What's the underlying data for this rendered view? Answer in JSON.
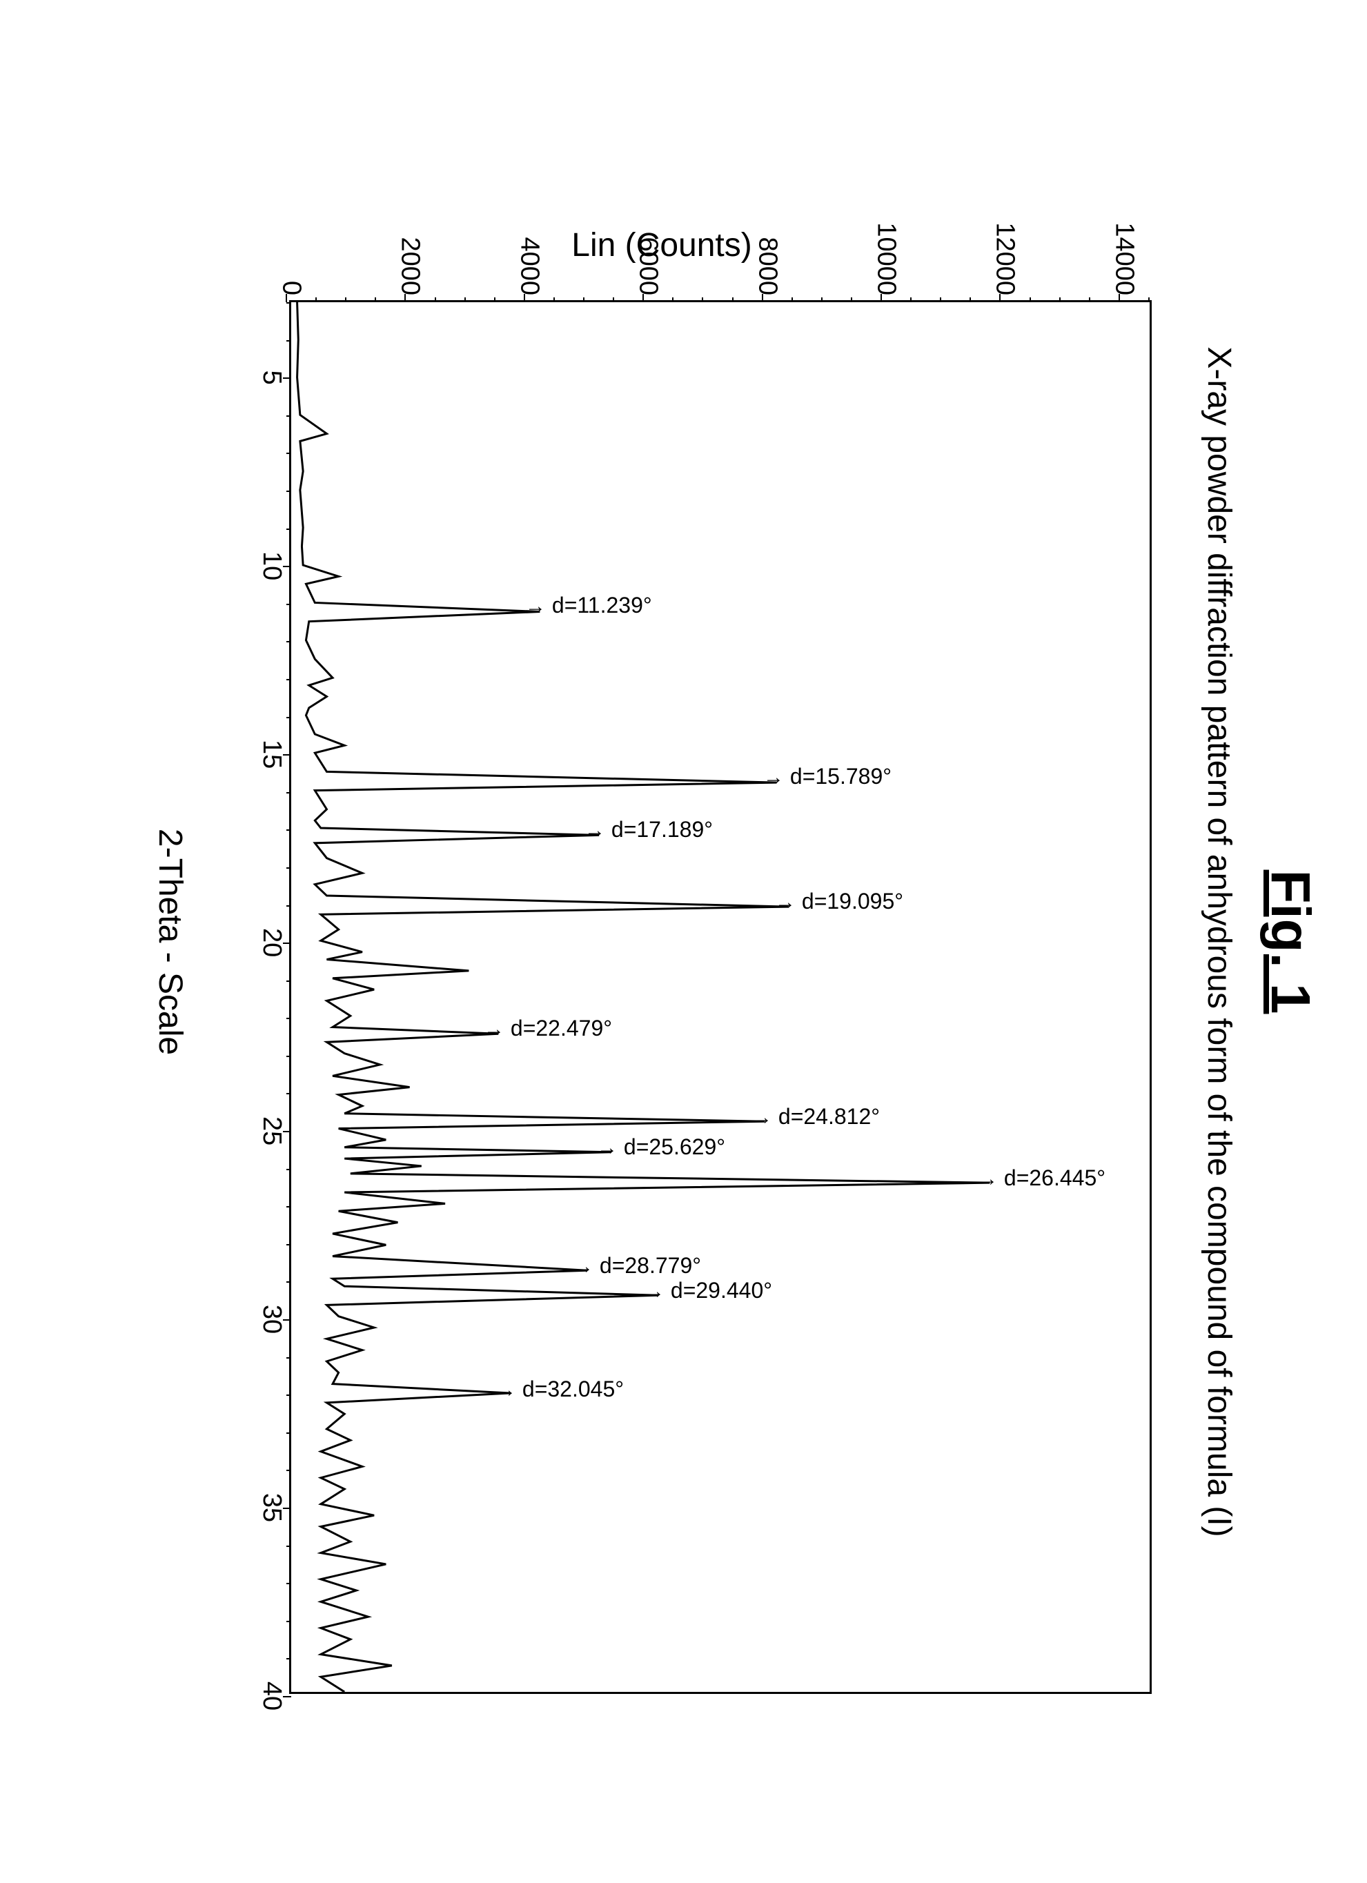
{
  "figure_title": "Fig. 1",
  "subtitle": "X-ray powder diffraction pattern of anhydrous form of the compound of formula (I)",
  "chart": {
    "type": "line",
    "ylabel": "Lin (Counts)",
    "xlabel": "2-Theta - Scale",
    "xlim": [
      3,
      40
    ],
    "ylim": [
      0,
      14500
    ],
    "ytick_step": 2000,
    "yticks": [
      0,
      2000,
      4000,
      6000,
      8000,
      10000,
      12000,
      14000
    ],
    "xticks": [
      5,
      10,
      15,
      20,
      25,
      30,
      35,
      40
    ],
    "minor_y_step": 500,
    "minor_x_step": 1,
    "line_color": "#000000",
    "line_width": 3,
    "background_color": "#ffffff",
    "border_color": "#000000",
    "border_width": 3,
    "title_fontsize": 80,
    "subtitle_fontsize": 48,
    "label_fontsize": 48,
    "tick_fontsize": 38,
    "peak_label_fontsize": 32,
    "peaks": [
      {
        "x": 11.239,
        "intensity": 4200,
        "label": "d=11.239°"
      },
      {
        "x": 15.789,
        "intensity": 8200,
        "label": "d=15.789°"
      },
      {
        "x": 17.189,
        "intensity": 5200,
        "label": "d=17.189°"
      },
      {
        "x": 19.095,
        "intensity": 8400,
        "label": "d=19.095°"
      },
      {
        "x": 22.479,
        "intensity": 3500,
        "label": "d=22.479°"
      },
      {
        "x": 24.812,
        "intensity": 8000,
        "label": "d=24.812°"
      },
      {
        "x": 25.629,
        "intensity": 5400,
        "label": "d=25.629°"
      },
      {
        "x": 26.445,
        "intensity": 11800,
        "label": "d=26.445°"
      },
      {
        "x": 28.779,
        "intensity": 5000,
        "label": "d=28.779°"
      },
      {
        "x": 29.44,
        "intensity": 6200,
        "label": "d=29.440°"
      },
      {
        "x": 32.045,
        "intensity": 3700,
        "label": "d=32.045°"
      }
    ],
    "trace": [
      {
        "x": 3,
        "y": 100
      },
      {
        "x": 4,
        "y": 120
      },
      {
        "x": 5,
        "y": 100
      },
      {
        "x": 6,
        "y": 150
      },
      {
        "x": 6.5,
        "y": 600
      },
      {
        "x": 6.7,
        "y": 150
      },
      {
        "x": 7.5,
        "y": 200
      },
      {
        "x": 8,
        "y": 150
      },
      {
        "x": 9,
        "y": 200
      },
      {
        "x": 9.5,
        "y": 180
      },
      {
        "x": 10,
        "y": 200
      },
      {
        "x": 10.3,
        "y": 800
      },
      {
        "x": 10.5,
        "y": 250
      },
      {
        "x": 11,
        "y": 400
      },
      {
        "x": 11.239,
        "y": 4200
      },
      {
        "x": 11.5,
        "y": 300
      },
      {
        "x": 12,
        "y": 250
      },
      {
        "x": 12.5,
        "y": 400
      },
      {
        "x": 13,
        "y": 700
      },
      {
        "x": 13.2,
        "y": 300
      },
      {
        "x": 13.5,
        "y": 600
      },
      {
        "x": 13.8,
        "y": 300
      },
      {
        "x": 14,
        "y": 250
      },
      {
        "x": 14.5,
        "y": 400
      },
      {
        "x": 14.8,
        "y": 900
      },
      {
        "x": 15,
        "y": 400
      },
      {
        "x": 15.5,
        "y": 600
      },
      {
        "x": 15.789,
        "y": 8200
      },
      {
        "x": 16,
        "y": 400
      },
      {
        "x": 16.5,
        "y": 600
      },
      {
        "x": 16.8,
        "y": 400
      },
      {
        "x": 17,
        "y": 500
      },
      {
        "x": 17.189,
        "y": 5200
      },
      {
        "x": 17.4,
        "y": 400
      },
      {
        "x": 17.8,
        "y": 600
      },
      {
        "x": 18.2,
        "y": 1200
      },
      {
        "x": 18.5,
        "y": 400
      },
      {
        "x": 18.8,
        "y": 600
      },
      {
        "x": 19.095,
        "y": 8400
      },
      {
        "x": 19.3,
        "y": 500
      },
      {
        "x": 19.7,
        "y": 800
      },
      {
        "x": 20,
        "y": 500
      },
      {
        "x": 20.3,
        "y": 1200
      },
      {
        "x": 20.5,
        "y": 600
      },
      {
        "x": 20.8,
        "y": 3000
      },
      {
        "x": 21,
        "y": 700
      },
      {
        "x": 21.3,
        "y": 1400
      },
      {
        "x": 21.6,
        "y": 600
      },
      {
        "x": 22,
        "y": 1000
      },
      {
        "x": 22.3,
        "y": 700
      },
      {
        "x": 22.479,
        "y": 3500
      },
      {
        "x": 22.7,
        "y": 600
      },
      {
        "x": 23,
        "y": 900
      },
      {
        "x": 23.3,
        "y": 1500
      },
      {
        "x": 23.6,
        "y": 700
      },
      {
        "x": 23.9,
        "y": 2000
      },
      {
        "x": 24.1,
        "y": 800
      },
      {
        "x": 24.4,
        "y": 1200
      },
      {
        "x": 24.6,
        "y": 900
      },
      {
        "x": 24.812,
        "y": 8000
      },
      {
        "x": 25,
        "y": 800
      },
      {
        "x": 25.3,
        "y": 1600
      },
      {
        "x": 25.5,
        "y": 900
      },
      {
        "x": 25.629,
        "y": 5400
      },
      {
        "x": 25.8,
        "y": 900
      },
      {
        "x": 26,
        "y": 2200
      },
      {
        "x": 26.2,
        "y": 1000
      },
      {
        "x": 26.445,
        "y": 11800
      },
      {
        "x": 26.7,
        "y": 900
      },
      {
        "x": 27,
        "y": 2600
      },
      {
        "x": 27.2,
        "y": 800
      },
      {
        "x": 27.5,
        "y": 1800
      },
      {
        "x": 27.8,
        "y": 700
      },
      {
        "x": 28.1,
        "y": 1600
      },
      {
        "x": 28.4,
        "y": 700
      },
      {
        "x": 28.779,
        "y": 5000
      },
      {
        "x": 29,
        "y": 700
      },
      {
        "x": 29.2,
        "y": 900
      },
      {
        "x": 29.44,
        "y": 6200
      },
      {
        "x": 29.7,
        "y": 600
      },
      {
        "x": 30,
        "y": 800
      },
      {
        "x": 30.3,
        "y": 1400
      },
      {
        "x": 30.6,
        "y": 600
      },
      {
        "x": 30.9,
        "y": 1200
      },
      {
        "x": 31.2,
        "y": 600
      },
      {
        "x": 31.5,
        "y": 800
      },
      {
        "x": 31.8,
        "y": 700
      },
      {
        "x": 32.045,
        "y": 3700
      },
      {
        "x": 32.3,
        "y": 600
      },
      {
        "x": 32.6,
        "y": 900
      },
      {
        "x": 33,
        "y": 600
      },
      {
        "x": 33.3,
        "y": 1000
      },
      {
        "x": 33.6,
        "y": 500
      },
      {
        "x": 34,
        "y": 1200
      },
      {
        "x": 34.3,
        "y": 500
      },
      {
        "x": 34.6,
        "y": 900
      },
      {
        "x": 35,
        "y": 500
      },
      {
        "x": 35.3,
        "y": 1400
      },
      {
        "x": 35.6,
        "y": 500
      },
      {
        "x": 36,
        "y": 1000
      },
      {
        "x": 36.3,
        "y": 500
      },
      {
        "x": 36.6,
        "y": 1600
      },
      {
        "x": 37,
        "y": 500
      },
      {
        "x": 37.3,
        "y": 1100
      },
      {
        "x": 37.6,
        "y": 500
      },
      {
        "x": 38,
        "y": 1300
      },
      {
        "x": 38.3,
        "y": 500
      },
      {
        "x": 38.6,
        "y": 1000
      },
      {
        "x": 39,
        "y": 500
      },
      {
        "x": 39.3,
        "y": 1700
      },
      {
        "x": 39.6,
        "y": 500
      },
      {
        "x": 40,
        "y": 900
      }
    ]
  }
}
